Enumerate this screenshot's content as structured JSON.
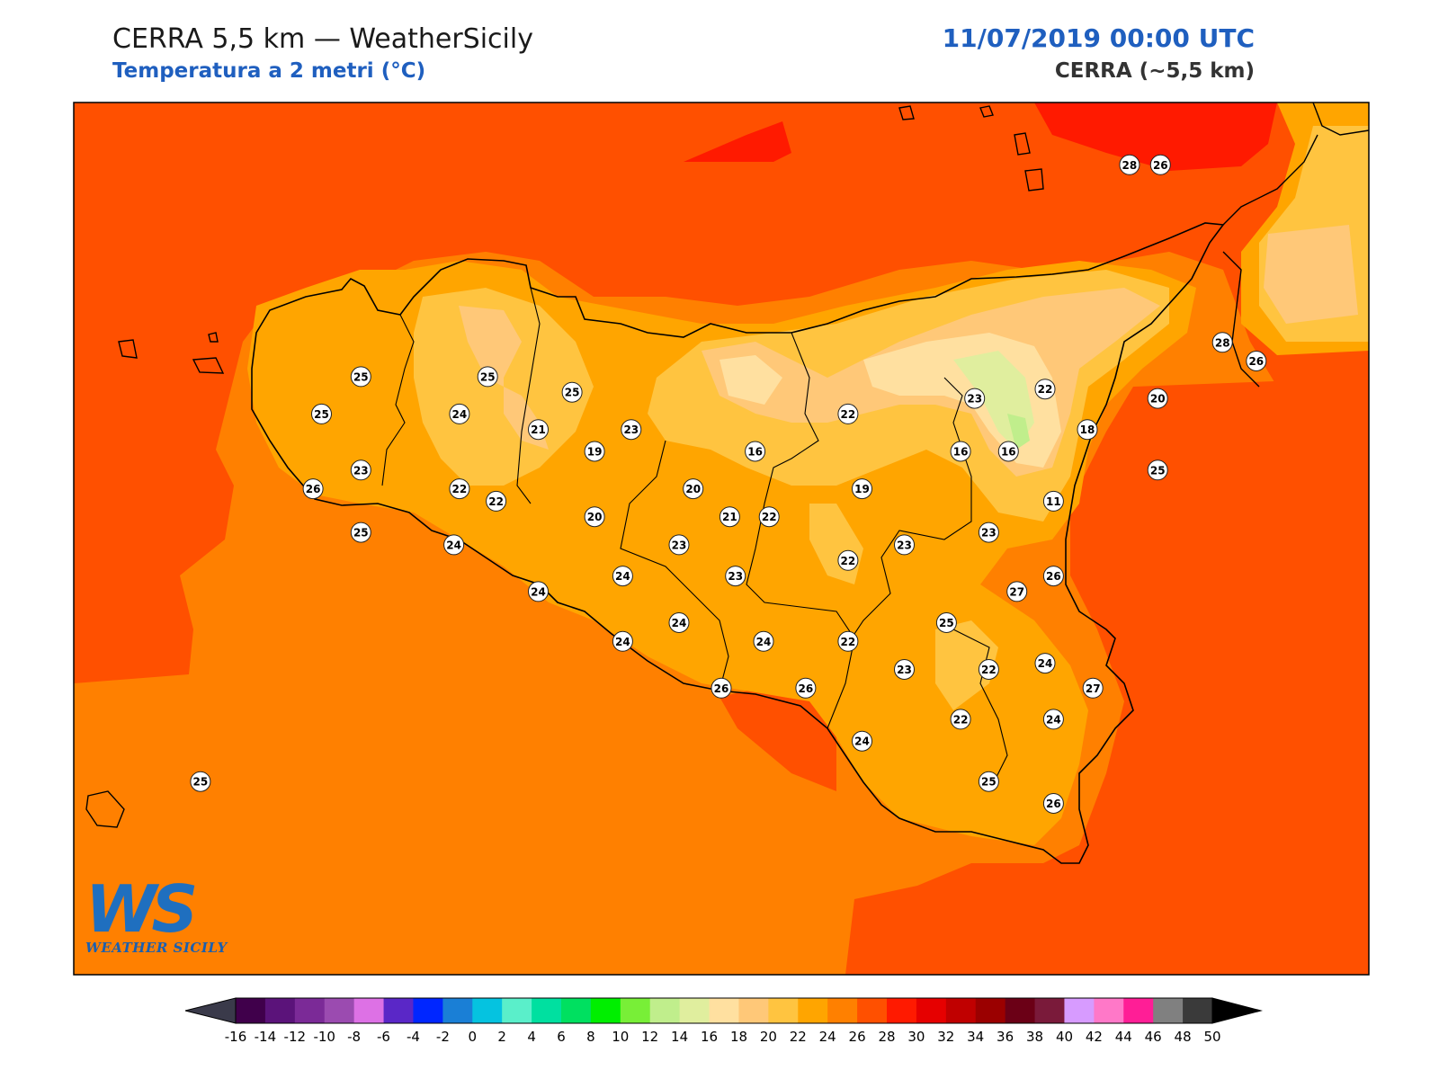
{
  "header": {
    "title": "CERRA 5,5 km — WeatherSicily",
    "subtitle": "Temperatura a 2 metri (°C)",
    "datetime": "11/07/2019 00:00 UTC",
    "model": "CERRA (~5,5 km)"
  },
  "logo": {
    "mark": "WS",
    "text": "WEATHER SICILY"
  },
  "colorbar": {
    "ticks": [
      "-16",
      "-14",
      "-12",
      "-10",
      "-8",
      "-6",
      "-4",
      "-2",
      "0",
      "2",
      "4",
      "6",
      "8",
      "10",
      "12",
      "14",
      "16",
      "18",
      "20",
      "22",
      "24",
      "26",
      "28",
      "30",
      "32",
      "34",
      "36",
      "38",
      "40",
      "42",
      "44",
      "46",
      "48",
      "50"
    ],
    "colors": [
      "#40004b",
      "#5b137a",
      "#7b2a97",
      "#9b4bb0",
      "#dd71e5",
      "#5a27c7",
      "#0026ff",
      "#1a7fd6",
      "#05c3e0",
      "#5aefca",
      "#00e0a0",
      "#00e060",
      "#00ef00",
      "#78ef37",
      "#c0ee8c",
      "#e0ee9e",
      "#ffe0a0",
      "#ffc878",
      "#ffc440",
      "#ffa500",
      "#ff8000",
      "#ff5000",
      "#ff1a00",
      "#e60000",
      "#c00000",
      "#9b0000",
      "#6b0016",
      "#7a1a3a",
      "#d79bff",
      "#ff78c8",
      "#ff1e96",
      "#808080",
      "#3a3a3a"
    ],
    "under_color": "#3a3a4a",
    "over_color": "#000000"
  },
  "chart_data": {
    "type": "heatmap",
    "variable": "Temperatura a 2 metri (°C)",
    "valid_time": "11/07/2019 00:00 UTC",
    "station_values": [
      {
        "lon": 15.35,
        "lat": 38.8,
        "value": 28
      },
      {
        "lon": 15.46,
        "lat": 38.8,
        "value": 26
      },
      {
        "lon": 15.68,
        "lat": 38.23,
        "value": 28
      },
      {
        "lon": 15.8,
        "lat": 38.17,
        "value": 26
      },
      {
        "lon": 12.62,
        "lat": 38.12,
        "value": 25
      },
      {
        "lon": 13.07,
        "lat": 38.12,
        "value": 25
      },
      {
        "lon": 13.37,
        "lat": 38.07,
        "value": 25
      },
      {
        "lon": 12.48,
        "lat": 38.0,
        "value": 25
      },
      {
        "lon": 12.97,
        "lat": 38.0,
        "value": 24
      },
      {
        "lon": 13.25,
        "lat": 37.95,
        "value": 21
      },
      {
        "lon": 13.58,
        "lat": 37.95,
        "value": 23
      },
      {
        "lon": 13.45,
        "lat": 37.88,
        "value": 19
      },
      {
        "lon": 14.02,
        "lat": 37.88,
        "value": 16
      },
      {
        "lon": 14.35,
        "lat": 38.0,
        "value": 22
      },
      {
        "lon": 14.8,
        "lat": 38.05,
        "value": 23
      },
      {
        "lon": 15.05,
        "lat": 38.08,
        "value": 22
      },
      {
        "lon": 15.2,
        "lat": 37.95,
        "value": 18
      },
      {
        "lon": 15.45,
        "lat": 38.05,
        "value": 20
      },
      {
        "lon": 14.75,
        "lat": 37.88,
        "value": 16
      },
      {
        "lon": 14.92,
        "lat": 37.88,
        "value": 16
      },
      {
        "lon": 12.62,
        "lat": 37.82,
        "value": 23
      },
      {
        "lon": 12.45,
        "lat": 37.76,
        "value": 26
      },
      {
        "lon": 12.97,
        "lat": 37.76,
        "value": 22
      },
      {
        "lon": 13.1,
        "lat": 37.72,
        "value": 22
      },
      {
        "lon": 13.8,
        "lat": 37.76,
        "value": 20
      },
      {
        "lon": 14.4,
        "lat": 37.76,
        "value": 19
      },
      {
        "lon": 15.08,
        "lat": 37.72,
        "value": 11
      },
      {
        "lon": 15.45,
        "lat": 37.82,
        "value": 25
      },
      {
        "lon": 13.45,
        "lat": 37.67,
        "value": 20
      },
      {
        "lon": 13.93,
        "lat": 37.67,
        "value": 21
      },
      {
        "lon": 14.07,
        "lat": 37.67,
        "value": 22
      },
      {
        "lon": 12.62,
        "lat": 37.62,
        "value": 25
      },
      {
        "lon": 12.95,
        "lat": 37.58,
        "value": 24
      },
      {
        "lon": 13.75,
        "lat": 37.58,
        "value": 23
      },
      {
        "lon": 14.55,
        "lat": 37.58,
        "value": 23
      },
      {
        "lon": 14.85,
        "lat": 37.62,
        "value": 23
      },
      {
        "lon": 14.35,
        "lat": 37.53,
        "value": 22
      },
      {
        "lon": 13.55,
        "lat": 37.48,
        "value": 24
      },
      {
        "lon": 13.95,
        "lat": 37.48,
        "value": 23
      },
      {
        "lon": 15.08,
        "lat": 37.48,
        "value": 26
      },
      {
        "lon": 13.25,
        "lat": 37.43,
        "value": 24
      },
      {
        "lon": 14.95,
        "lat": 37.43,
        "value": 27
      },
      {
        "lon": 13.75,
        "lat": 37.33,
        "value": 24
      },
      {
        "lon": 14.7,
        "lat": 37.33,
        "value": 25
      },
      {
        "lon": 13.55,
        "lat": 37.27,
        "value": 24
      },
      {
        "lon": 14.05,
        "lat": 37.27,
        "value": 24
      },
      {
        "lon": 14.35,
        "lat": 37.27,
        "value": 22
      },
      {
        "lon": 15.05,
        "lat": 37.2,
        "value": 24
      },
      {
        "lon": 14.55,
        "lat": 37.18,
        "value": 23
      },
      {
        "lon": 14.85,
        "lat": 37.18,
        "value": 22
      },
      {
        "lon": 13.9,
        "lat": 37.12,
        "value": 26
      },
      {
        "lon": 14.2,
        "lat": 37.12,
        "value": 26
      },
      {
        "lon": 15.22,
        "lat": 37.12,
        "value": 27
      },
      {
        "lon": 14.75,
        "lat": 37.02,
        "value": 22
      },
      {
        "lon": 15.08,
        "lat": 37.02,
        "value": 24
      },
      {
        "lon": 14.4,
        "lat": 36.95,
        "value": 24
      },
      {
        "lon": 12.05,
        "lat": 36.82,
        "value": 25
      },
      {
        "lon": 14.85,
        "lat": 36.82,
        "value": 25
      },
      {
        "lon": 15.08,
        "lat": 36.75,
        "value": 26
      }
    ]
  }
}
